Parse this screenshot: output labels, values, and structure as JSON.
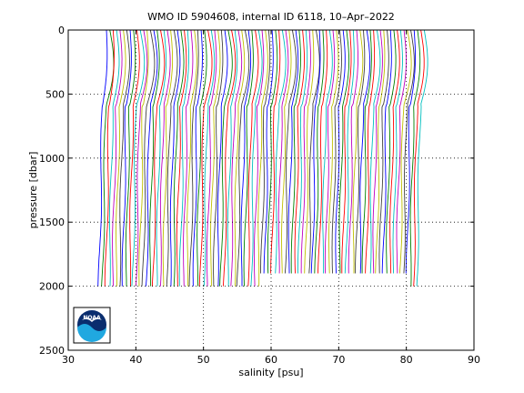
{
  "chart_data": {
    "type": "line",
    "title": "WMO ID 5904608, internal ID 6118, 10–Apr–2022",
    "xlabel": "salinity [psu]",
    "ylabel": "pressure [dbar]",
    "xlim": [
      30,
      90
    ],
    "ylim": [
      0,
      2500
    ],
    "y_reversed": true,
    "grid": true,
    "x_ticks": [
      "30",
      "40",
      "50",
      "60",
      "70",
      "80",
      "90"
    ],
    "y_ticks": [
      "0",
      "500",
      "1000",
      "1500",
      "2000",
      "2500"
    ],
    "series_colors": [
      "#0000ff",
      "#008000",
      "#ff0000",
      "#00bfbf",
      "#bf00bf",
      "#bfbf00",
      "#404040"
    ],
    "profile_count": 95,
    "profile_offset_step_psu": 0.5,
    "first_profile_deep_salinity": 34.75,
    "max_pressure_dbar": 2000,
    "logo": "noaa-logo"
  }
}
